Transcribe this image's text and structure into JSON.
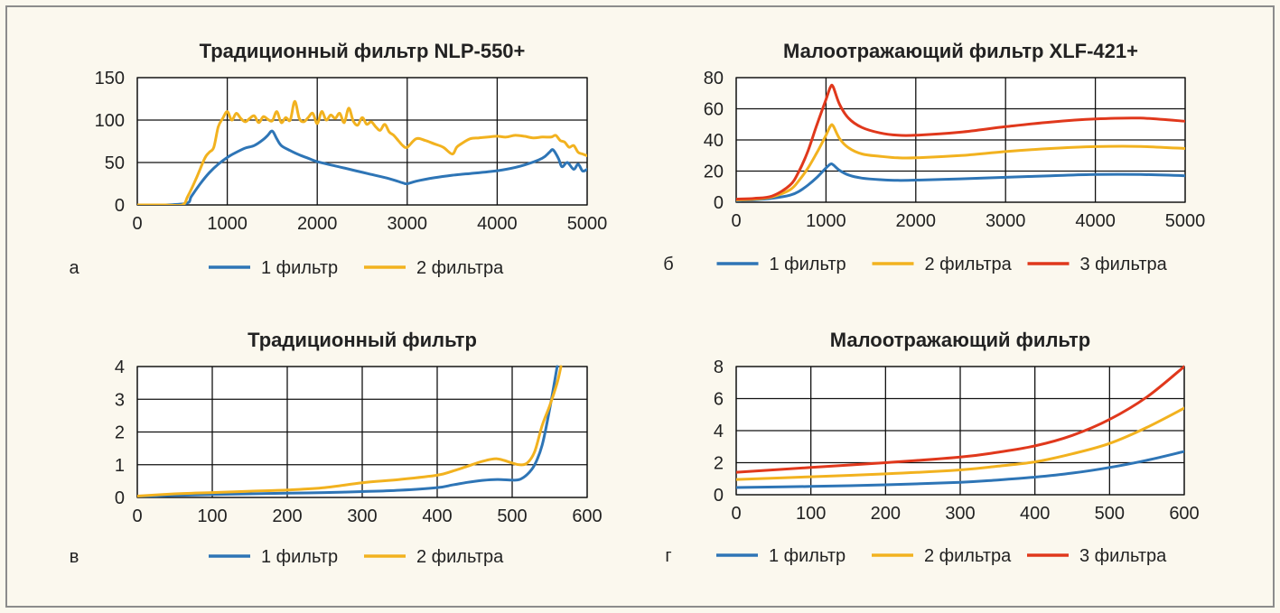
{
  "colors": {
    "1 фильтр": "#2e75b6",
    "2 фильтра": "#f2b21f",
    "3 фильтра": "#e0381c"
  },
  "chart_data": [
    {
      "type": "line",
      "panel": "а",
      "title": "Традиционный фильтр NLP-550+",
      "xlim": [
        0,
        5000
      ],
      "ylim": [
        0,
        150
      ],
      "xticks": [
        0,
        1000,
        2000,
        3000,
        4000,
        5000
      ],
      "yticks": [
        0,
        50,
        100,
        150
      ],
      "grid": true,
      "legend_position": "bottom",
      "series": [
        {
          "name": "1 фильтр",
          "x": [
            0,
            300,
            550,
            600,
            700,
            800,
            900,
            1000,
            1100,
            1200,
            1300,
            1400,
            1450,
            1500,
            1550,
            1600,
            1700,
            1800,
            1900,
            2000,
            2200,
            2400,
            2600,
            2800,
            2950,
            3000,
            3100,
            3300,
            3500,
            3700,
            3900,
            4100,
            4300,
            4500,
            4580,
            4620,
            4680,
            4720,
            4780,
            4850,
            4900,
            4950,
            5000
          ],
          "y": [
            0,
            0,
            2,
            10,
            25,
            38,
            48,
            56,
            62,
            67,
            70,
            77,
            82,
            87,
            78,
            70,
            64,
            59,
            55,
            51,
            46,
            41,
            36,
            31,
            26,
            25,
            28,
            32,
            35,
            37,
            39,
            42,
            47,
            55,
            62,
            65,
            55,
            45,
            50,
            42,
            48,
            40,
            42
          ]
        },
        {
          "name": "2 фильтра",
          "x": [
            0,
            300,
            500,
            560,
            650,
            750,
            800,
            850,
            900,
            950,
            1000,
            1050,
            1100,
            1150,
            1200,
            1250,
            1300,
            1350,
            1400,
            1450,
            1500,
            1550,
            1600,
            1650,
            1700,
            1750,
            1800,
            1850,
            1900,
            1950,
            2000,
            2050,
            2100,
            2150,
            2200,
            2250,
            2300,
            2350,
            2400,
            2450,
            2500,
            2550,
            2600,
            2650,
            2700,
            2750,
            2800,
            2850,
            2900,
            2950,
            3000,
            3100,
            3200,
            3300,
            3400,
            3500,
            3550,
            3600,
            3700,
            3800,
            3900,
            4000,
            4100,
            4200,
            4300,
            4400,
            4500,
            4600,
            4650,
            4700,
            4750,
            4800,
            4850,
            4900,
            4950,
            5000
          ],
          "y": [
            0,
            0,
            0,
            10,
            30,
            55,
            62,
            68,
            92,
            102,
            110,
            100,
            108,
            102,
            98,
            102,
            105,
            97,
            104,
            101,
            99,
            110,
            97,
            103,
            100,
            122,
            102,
            98,
            103,
            108,
            96,
            110,
            100,
            106,
            102,
            108,
            97,
            114,
            99,
            94,
            103,
            95,
            98,
            92,
            88,
            95,
            86,
            82,
            76,
            70,
            68,
            78,
            76,
            72,
            68,
            60,
            68,
            72,
            78,
            79,
            80,
            81,
            80,
            82,
            81,
            79,
            80,
            80,
            82,
            76,
            74,
            68,
            70,
            62,
            60,
            58
          ]
        }
      ]
    },
    {
      "type": "line",
      "panel": "б",
      "title": "Малоотражающий фильтр XLF-421+",
      "xlim": [
        0,
        5000
      ],
      "ylim": [
        0,
        80
      ],
      "xticks": [
        0,
        1000,
        2000,
        3000,
        4000,
        5000
      ],
      "yticks": [
        0,
        20,
        40,
        60,
        80
      ],
      "grid": true,
      "legend_position": "bottom",
      "series": [
        {
          "name": "1 фильтр",
          "x": [
            0,
            200,
            400,
            600,
            700,
            800,
            900,
            1000,
            1050,
            1080,
            1150,
            1250,
            1400,
            1600,
            1800,
            2000,
            2500,
            3000,
            3500,
            4000,
            4500,
            5000
          ],
          "y": [
            1,
            1.5,
            2.5,
            4.5,
            7,
            11,
            16,
            22,
            24.5,
            24,
            20.5,
            17.5,
            15.5,
            14.5,
            14,
            14.2,
            15,
            16,
            17,
            17.8,
            17.8,
            17
          ]
        },
        {
          "name": "2 фильтра",
          "x": [
            0,
            200,
            400,
            600,
            700,
            800,
            900,
            1000,
            1050,
            1080,
            1150,
            1250,
            1400,
            1600,
            1800,
            2000,
            2500,
            3000,
            3500,
            4000,
            4500,
            5000
          ],
          "y": [
            1.5,
            2,
            3.5,
            8,
            14,
            22,
            32,
            43,
            49,
            49,
            41,
            35,
            31,
            29.5,
            28.5,
            28.5,
            30,
            32.5,
            34.5,
            35.7,
            35.8,
            34.5
          ]
        },
        {
          "name": "3 фильтра",
          "x": [
            0,
            200,
            400,
            600,
            700,
            800,
            900,
            1000,
            1050,
            1080,
            1150,
            1250,
            1400,
            1600,
            1800,
            2000,
            2500,
            3000,
            3500,
            4000,
            4500,
            5000
          ],
          "y": [
            2,
            2.5,
            4,
            11,
            20,
            33,
            50,
            66,
            74,
            74,
            63,
            54,
            48,
            44.5,
            43,
            43,
            45,
            48.5,
            51.5,
            53.5,
            54,
            52
          ]
        }
      ]
    },
    {
      "type": "line",
      "panel": "в",
      "title": "Традиционный фильтр",
      "xlim": [
        0,
        600
      ],
      "ylim": [
        0,
        4
      ],
      "xticks": [
        0,
        100,
        200,
        300,
        400,
        500,
        600
      ],
      "yticks": [
        0,
        1,
        2,
        3,
        4
      ],
      "grid": true,
      "legend_position": "bottom",
      "series": [
        {
          "name": "1 фильтр",
          "x": [
            0,
            50,
            100,
            150,
            200,
            250,
            300,
            350,
            400,
            420,
            440,
            460,
            480,
            500,
            510,
            520,
            530,
            540,
            550,
            560
          ],
          "y": [
            0.02,
            0.06,
            0.09,
            0.11,
            0.13,
            0.15,
            0.18,
            0.22,
            0.3,
            0.38,
            0.46,
            0.52,
            0.55,
            0.53,
            0.55,
            0.7,
            1.0,
            1.6,
            2.7,
            4.0
          ]
        },
        {
          "name": "2 фильтра",
          "x": [
            0,
            50,
            100,
            150,
            200,
            250,
            300,
            350,
            400,
            420,
            440,
            460,
            480,
            500,
            510,
            520,
            530,
            540,
            550,
            560,
            565
          ],
          "y": [
            0.04,
            0.11,
            0.15,
            0.19,
            0.23,
            0.3,
            0.45,
            0.55,
            0.68,
            0.8,
            0.95,
            1.1,
            1.18,
            1.05,
            1.0,
            1.05,
            1.4,
            2.2,
            2.8,
            3.5,
            4.0
          ]
        }
      ]
    },
    {
      "type": "line",
      "panel": "г",
      "title": "Малоотражающий фильтр",
      "xlim": [
        0,
        600
      ],
      "ylim": [
        0,
        8
      ],
      "xticks": [
        0,
        100,
        200,
        300,
        400,
        500,
        600
      ],
      "yticks": [
        0,
        2,
        4,
        6,
        8
      ],
      "grid": true,
      "legend_position": "bottom",
      "series": [
        {
          "name": "1 фильтр",
          "x": [
            0,
            100,
            200,
            300,
            350,
            400,
            450,
            500,
            550,
            600
          ],
          "y": [
            0.45,
            0.52,
            0.62,
            0.78,
            0.92,
            1.1,
            1.35,
            1.7,
            2.15,
            2.7
          ]
        },
        {
          "name": "2 фильтра",
          "x": [
            0,
            100,
            200,
            300,
            350,
            400,
            450,
            500,
            550,
            600
          ],
          "y": [
            0.95,
            1.12,
            1.3,
            1.55,
            1.78,
            2.05,
            2.55,
            3.2,
            4.2,
            5.4
          ]
        },
        {
          "name": "3 фильтра",
          "x": [
            0,
            100,
            200,
            300,
            350,
            400,
            450,
            500,
            550,
            600
          ],
          "y": [
            1.4,
            1.7,
            2.0,
            2.35,
            2.65,
            3.05,
            3.7,
            4.7,
            6.1,
            8.0
          ]
        }
      ]
    }
  ]
}
